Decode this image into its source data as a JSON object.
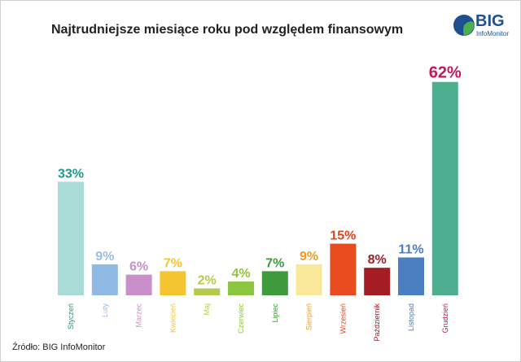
{
  "title": "Najtrudniejsze miesiące roku pod względem finansowym",
  "logo": {
    "main": "BIG",
    "sub": "InfoMonitor"
  },
  "source": "Źródło: BIG InfoMonitor",
  "chart_data": {
    "type": "bar",
    "title": "Najtrudniejsze miesiące roku pod względem finansowym",
    "categories": [
      "Styczeń",
      "Luty",
      "Marzec",
      "Kwiecień",
      "Maj",
      "Czerwiec",
      "Lipiec",
      "Sierpień",
      "Wrzesień",
      "Październik",
      "Listopad",
      "Grudzień"
    ],
    "values": [
      33,
      9,
      6,
      7,
      2,
      4,
      7,
      9,
      15,
      8,
      11,
      62
    ],
    "value_labels": [
      "33%",
      "9%",
      "6%",
      "7%",
      "2%",
      "4%",
      "7%",
      "9%",
      "15%",
      "8%",
      "11%",
      "62%"
    ],
    "bar_colors": [
      "#a9dcd6",
      "#8db9e3",
      "#c88fc8",
      "#f5c531",
      "#b5cb4c",
      "#8cc63f",
      "#3e9a3a",
      "#f9e79a",
      "#e84c1e",
      "#a51d24",
      "#4a7fc1",
      "#4caf8f"
    ],
    "label_colors": [
      "#1a9b8c",
      "#9bbde6",
      "#c88fc8",
      "#f5c531",
      "#b5cb4c",
      "#8cc63f",
      "#3e9a3a",
      "#f39a1e",
      "#e0451b",
      "#a51d24",
      "#4a7fc1",
      "#c2185b"
    ],
    "ylim": [
      0,
      65
    ],
    "grid": false
  }
}
